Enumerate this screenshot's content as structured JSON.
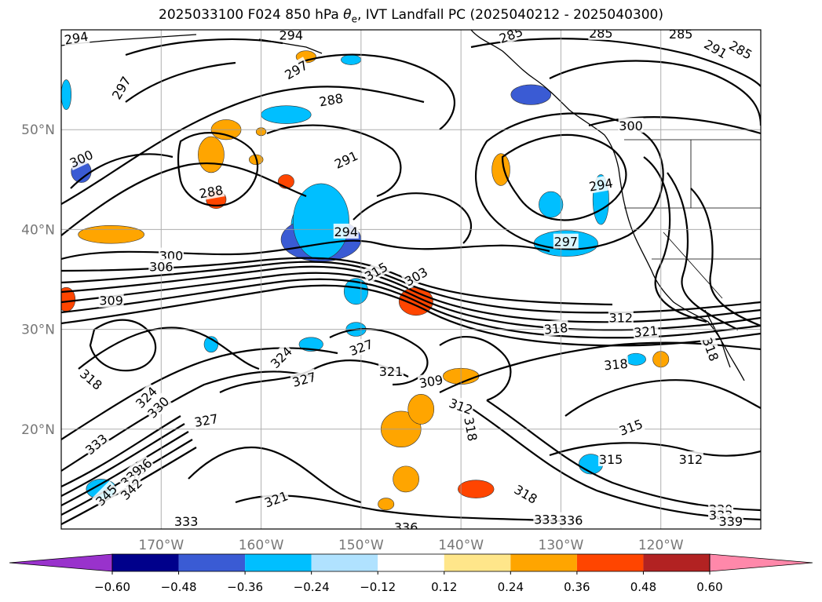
{
  "chart_data": {
    "type": "heatmap",
    "title_prefix": "2025033100 F024 850 hPa ",
    "title_symbol": "θ",
    "title_symbol_sub": "e",
    "title_suffix": ", IVT Landfall PC (2025040212 - 2025040300)",
    "lon_range": [
      -180,
      -110
    ],
    "lat_range": [
      10,
      60
    ],
    "x_ticks": [
      {
        "lon": -170,
        "label": "170°W"
      },
      {
        "lon": -160,
        "label": "160°W"
      },
      {
        "lon": -150,
        "label": "150°W"
      },
      {
        "lon": -140,
        "label": "140°W"
      },
      {
        "lon": -130,
        "label": "130°W"
      },
      {
        "lon": -120,
        "label": "120°W"
      }
    ],
    "y_ticks": [
      {
        "lat": 20,
        "label": "20°N"
      },
      {
        "lat": 30,
        "label": "30°N"
      },
      {
        "lat": 40,
        "label": "40°N"
      },
      {
        "lat": 50,
        "label": "50°N"
      }
    ],
    "grid": true,
    "colorbar": {
      "levels": [
        "−0.60",
        "−0.48",
        "−0.36",
        "−0.24",
        "−0.12",
        "0.12",
        "0.24",
        "0.36",
        "0.48",
        "0.60"
      ],
      "colors": [
        "#9932cc",
        "#00008b",
        "#3a5bd4",
        "#00bfff",
        "#b0e2ff",
        "#ffffff",
        "#ffe68a",
        "#ffa500",
        "#ff4500",
        "#b22222",
        "#ff88aa"
      ],
      "extend": "both"
    },
    "contour_labels": [
      {
        "t": "294",
        "lon": -178.5,
        "lat": 59.2,
        "rot": -10
      },
      {
        "t": "294",
        "lon": -157.0,
        "lat": 59.5,
        "rot": 0
      },
      {
        "t": "297",
        "lon": -174.0,
        "lat": 54.2,
        "rot": -60
      },
      {
        "t": "297",
        "lon": -156.5,
        "lat": 56.0,
        "rot": -30
      },
      {
        "t": "288",
        "lon": -153.0,
        "lat": 53.0,
        "rot": -10
      },
      {
        "t": "285",
        "lon": -135.0,
        "lat": 59.5,
        "rot": -20
      },
      {
        "t": "285",
        "lon": -126.0,
        "lat": 59.7,
        "rot": 0
      },
      {
        "t": "285",
        "lon": -118.0,
        "lat": 59.6,
        "rot": 0
      },
      {
        "t": "291",
        "lon": -114.5,
        "lat": 58.1,
        "rot": 30
      },
      {
        "t": "285",
        "lon": -112.0,
        "lat": 58.0,
        "rot": 30
      },
      {
        "t": "300",
        "lon": -123.0,
        "lat": 50.4,
        "rot": 0
      },
      {
        "t": "300",
        "lon": -178.0,
        "lat": 47.1,
        "rot": -25
      },
      {
        "t": "291",
        "lon": -151.5,
        "lat": 47.0,
        "rot": -25
      },
      {
        "t": "288",
        "lon": -165.0,
        "lat": 43.8,
        "rot": -10
      },
      {
        "t": "294",
        "lon": -126.0,
        "lat": 44.5,
        "rot": -10
      },
      {
        "t": "294",
        "lon": -151.5,
        "lat": 39.8,
        "rot": 0
      },
      {
        "t": "297",
        "lon": -129.5,
        "lat": 38.8,
        "rot": 0
      },
      {
        "t": "300",
        "lon": -169.0,
        "lat": 37.4,
        "rot": 0
      },
      {
        "t": "306",
        "lon": -170.0,
        "lat": 36.3,
        "rot": 0
      },
      {
        "t": "315",
        "lon": -148.5,
        "lat": 35.8,
        "rot": -30
      },
      {
        "t": "303",
        "lon": -144.5,
        "lat": 35.3,
        "rot": -30
      },
      {
        "t": "309",
        "lon": -175.0,
        "lat": 32.9,
        "rot": 0
      },
      {
        "t": "318",
        "lon": -130.5,
        "lat": 30.1,
        "rot": -5
      },
      {
        "t": "312",
        "lon": -124.0,
        "lat": 31.2,
        "rot": 0
      },
      {
        "t": "321",
        "lon": -121.5,
        "lat": 29.8,
        "rot": -5
      },
      {
        "t": "318",
        "lon": -115.0,
        "lat": 28.0,
        "rot": 70
      },
      {
        "t": "327",
        "lon": -150.0,
        "lat": 28.2,
        "rot": -20
      },
      {
        "t": "324",
        "lon": -158.0,
        "lat": 27.2,
        "rot": -45
      },
      {
        "t": "318",
        "lon": -124.5,
        "lat": 26.5,
        "rot": -5
      },
      {
        "t": "321",
        "lon": -147.0,
        "lat": 25.8,
        "rot": 0
      },
      {
        "t": "327",
        "lon": -155.7,
        "lat": 25.0,
        "rot": -15
      },
      {
        "t": "309",
        "lon": -143.0,
        "lat": 24.8,
        "rot": -10
      },
      {
        "t": "318",
        "lon": -177.0,
        "lat": 25.0,
        "rot": 40
      },
      {
        "t": "324",
        "lon": -171.5,
        "lat": 23.2,
        "rot": -45
      },
      {
        "t": "330",
        "lon": -170.3,
        "lat": 22.2,
        "rot": -45
      },
      {
        "t": "312",
        "lon": -140.0,
        "lat": 22.3,
        "rot": 20
      },
      {
        "t": "327",
        "lon": -165.5,
        "lat": 20.9,
        "rot": -10
      },
      {
        "t": "318",
        "lon": -139.0,
        "lat": 20.0,
        "rot": 80
      },
      {
        "t": "315",
        "lon": -123.0,
        "lat": 20.2,
        "rot": -20
      },
      {
        "t": "333",
        "lon": -176.5,
        "lat": 18.5,
        "rot": -40
      },
      {
        "t": "315",
        "lon": -125.0,
        "lat": 17.0,
        "rot": 0
      },
      {
        "t": "312",
        "lon": -117.0,
        "lat": 17.0,
        "rot": 0
      },
      {
        "t": "336",
        "lon": -172.0,
        "lat": 16.0,
        "rot": -45
      },
      {
        "t": "339",
        "lon": -173.0,
        "lat": 15.3,
        "rot": -45
      },
      {
        "t": "342",
        "lon": -173.0,
        "lat": 14.0,
        "rot": -45
      },
      {
        "t": "345",
        "lon": -175.5,
        "lat": 13.4,
        "rot": -45
      },
      {
        "t": "318",
        "lon": -133.5,
        "lat": 13.5,
        "rot": 30
      },
      {
        "t": "321",
        "lon": -158.5,
        "lat": 13.0,
        "rot": -20
      },
      {
        "t": "333",
        "lon": -167.5,
        "lat": 10.8,
        "rot": 0
      },
      {
        "t": "336",
        "lon": -145.5,
        "lat": 10.2,
        "rot": 0
      },
      {
        "t": "333",
        "lon": -131.5,
        "lat": 11.0,
        "rot": 0
      },
      {
        "t": "336",
        "lon": -129.0,
        "lat": 10.9,
        "rot": 0
      },
      {
        "t": "330",
        "lon": -114.0,
        "lat": 12.0,
        "rot": 0
      },
      {
        "t": "333",
        "lon": -114.0,
        "lat": 11.4,
        "rot": 0
      },
      {
        "t": "339",
        "lon": -113.0,
        "lat": 10.8,
        "rot": 0
      }
    ],
    "color_patches": [
      {
        "lon": -154.5,
        "lat": 40.3,
        "rx": 2.5,
        "ry": 2.8,
        "c": 3
      },
      {
        "lon": -154.0,
        "lat": 39.0,
        "rx": 4.0,
        "ry": 2.2,
        "c": 2
      },
      {
        "lon": -154.0,
        "lat": 40.8,
        "rx": 2.8,
        "ry": 3.8,
        "c": 3
      },
      {
        "lon": -129.5,
        "lat": 38.7,
        "rx": 3.0,
        "ry": 1.0,
        "c": 2
      },
      {
        "lon": -129.5,
        "lat": 38.6,
        "rx": 3.2,
        "ry": 1.3,
        "c": 3
      },
      {
        "lon": -131.0,
        "lat": 42.5,
        "rx": 1.2,
        "ry": 1.3,
        "c": 3
      },
      {
        "lon": -126.0,
        "lat": 43.0,
        "rx": 0.8,
        "ry": 2.5,
        "c": 3
      },
      {
        "lon": -133.0,
        "lat": 53.5,
        "rx": 2.0,
        "ry": 1.0,
        "c": 2
      },
      {
        "lon": -157.5,
        "lat": 51.5,
        "rx": 2.5,
        "ry": 0.9,
        "c": 3
      },
      {
        "lon": -151.0,
        "lat": 57.0,
        "rx": 1.0,
        "ry": 0.5,
        "c": 3
      },
      {
        "lon": -150.5,
        "lat": 33.8,
        "rx": 1.2,
        "ry": 1.3,
        "c": 3
      },
      {
        "lon": -150.5,
        "lat": 30.0,
        "rx": 1.0,
        "ry": 0.7,
        "c": 3
      },
      {
        "lon": -155.0,
        "lat": 28.5,
        "rx": 1.2,
        "ry": 0.7,
        "c": 3
      },
      {
        "lon": -178.0,
        "lat": 45.8,
        "rx": 1.0,
        "ry": 1.1,
        "c": 2
      },
      {
        "lon": -165.0,
        "lat": 28.5,
        "rx": 0.7,
        "ry": 0.8,
        "c": 3
      },
      {
        "lon": -127.0,
        "lat": 16.5,
        "rx": 1.2,
        "ry": 1.0,
        "c": 3
      },
      {
        "lon": -122.5,
        "lat": 27.0,
        "rx": 1.0,
        "ry": 0.6,
        "c": 3
      },
      {
        "lon": -176.0,
        "lat": 14.0,
        "rx": 1.5,
        "ry": 1.0,
        "c": 3
      },
      {
        "lon": -179.5,
        "lat": 53.5,
        "rx": 0.5,
        "ry": 1.5,
        "c": 3
      },
      {
        "lon": -165.0,
        "lat": 47.5,
        "rx": 1.3,
        "ry": 1.8,
        "c": 7
      },
      {
        "lon": -163.5,
        "lat": 50.0,
        "rx": 1.5,
        "ry": 1.0,
        "c": 7
      },
      {
        "lon": -164.5,
        "lat": 43.0,
        "rx": 1.0,
        "ry": 0.9,
        "c": 8
      },
      {
        "lon": -175.0,
        "lat": 39.5,
        "rx": 3.3,
        "ry": 0.9,
        "c": 7
      },
      {
        "lon": -136.0,
        "lat": 46.0,
        "rx": 0.9,
        "ry": 1.6,
        "c": 7
      },
      {
        "lon": -144.5,
        "lat": 32.8,
        "rx": 1.7,
        "ry": 1.4,
        "c": 8
      },
      {
        "lon": -146.0,
        "lat": 20.0,
        "rx": 2.0,
        "ry": 1.8,
        "c": 7
      },
      {
        "lon": -144.0,
        "lat": 22.0,
        "rx": 1.3,
        "ry": 1.5,
        "c": 7
      },
      {
        "lon": -145.5,
        "lat": 15.0,
        "rx": 1.3,
        "ry": 1.3,
        "c": 7
      },
      {
        "lon": -138.5,
        "lat": 14.0,
        "rx": 1.8,
        "ry": 0.9,
        "c": 8
      },
      {
        "lon": -140.0,
        "lat": 25.3,
        "rx": 1.8,
        "ry": 0.8,
        "c": 7
      },
      {
        "lon": -147.5,
        "lat": 12.5,
        "rx": 0.8,
        "ry": 0.6,
        "c": 7
      },
      {
        "lon": -120.0,
        "lat": 27.0,
        "rx": 0.8,
        "ry": 0.8,
        "c": 7
      },
      {
        "lon": -179.5,
        "lat": 33.0,
        "rx": 0.9,
        "ry": 1.2,
        "c": 8
      },
      {
        "lon": -157.5,
        "lat": 44.8,
        "rx": 0.8,
        "ry": 0.7,
        "c": 8
      },
      {
        "lon": -160.5,
        "lat": 47.0,
        "rx": 0.7,
        "ry": 0.5,
        "c": 7
      },
      {
        "lon": -160.0,
        "lat": 49.8,
        "rx": 0.5,
        "ry": 0.4,
        "c": 7
      },
      {
        "lon": -155.5,
        "lat": 57.3,
        "rx": 1.0,
        "ry": 0.6,
        "c": 7
      }
    ]
  }
}
